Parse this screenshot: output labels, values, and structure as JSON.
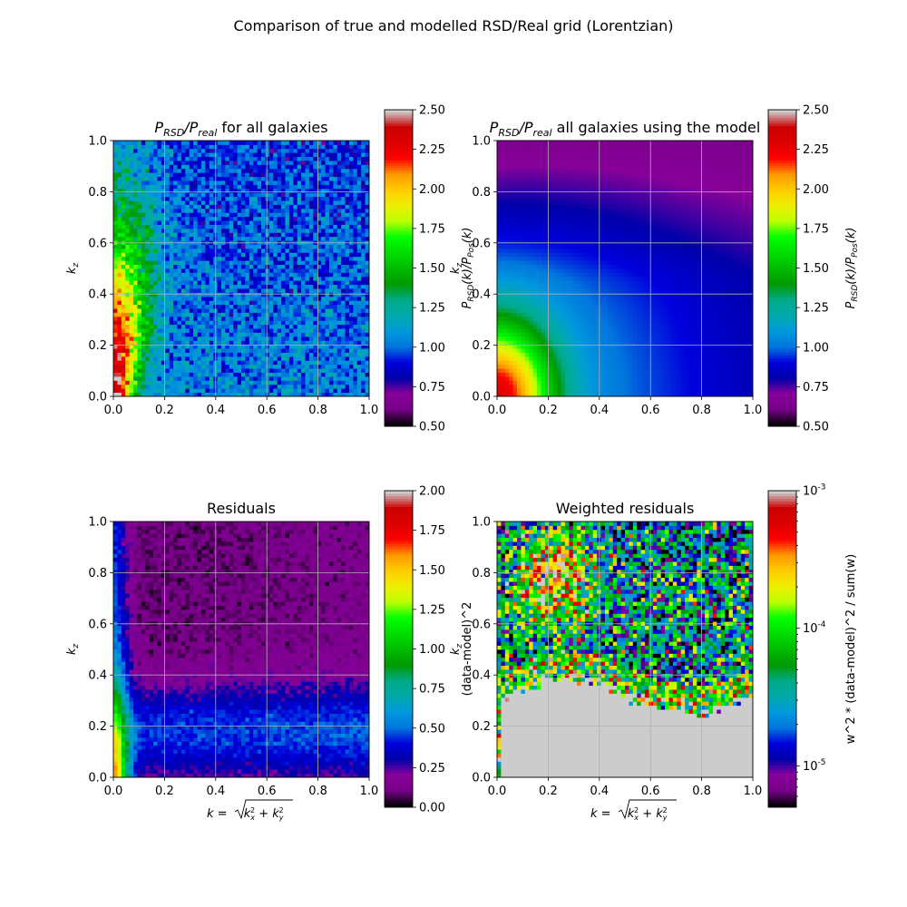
{
  "figure": {
    "suptitle": "Comparison of true and modelled RSD/Real grid (Lorentzian)"
  },
  "chart_data": [
    {
      "type": "heatmap",
      "id": "p1",
      "title": "P_RSD/P_real for all galaxies",
      "title_parts": [
        "P",
        "RSD",
        "/P",
        "real",
        " for all galaxies"
      ],
      "xlabel": "",
      "ylabel": "k_z",
      "xlim": [
        0,
        1
      ],
      "ylim": [
        0,
        1
      ],
      "xticks": [
        "0.0",
        "0.2",
        "0.4",
        "0.6",
        "0.8",
        "1.0"
      ],
      "yticks": [
        "0.0",
        "0.2",
        "0.4",
        "0.6",
        "0.8",
        "1.0"
      ],
      "grid": true,
      "colorscale": "nipy_spectral",
      "color_range": [
        0.5,
        2.5
      ],
      "colorbar_ticks": [
        "0.50",
        "0.75",
        "1.00",
        "1.25",
        "1.50",
        "1.75",
        "2.00",
        "2.25",
        "2.50"
      ],
      "colorbar_label": "P_RSD(k)/P_Pos(k)",
      "description_values": {
        "low_k_kz_peak": 2.3,
        "high_k_level": 1.0
      }
    },
    {
      "type": "heatmap",
      "id": "p2",
      "title": "P_RSD/P_real all galaxies using the model",
      "title_parts": [
        "P",
        "RSD",
        "/P",
        "real",
        " all galaxies using the model"
      ],
      "xlabel": "",
      "ylabel": "k_z",
      "xlim": [
        0,
        1
      ],
      "ylim": [
        0,
        1
      ],
      "xticks": [
        "0.0",
        "0.2",
        "0.4",
        "0.6",
        "0.8",
        "1.0"
      ],
      "yticks": [
        "0.0",
        "0.2",
        "0.4",
        "0.6",
        "0.8",
        "1.0"
      ],
      "grid": true,
      "colorscale": "nipy_spectral",
      "color_range": [
        0.5,
        2.5
      ],
      "colorbar_ticks": [
        "0.50",
        "0.75",
        "1.00",
        "1.25",
        "1.50",
        "1.75",
        "2.00",
        "2.25",
        "2.50"
      ],
      "colorbar_label": "P_RSD(k)/P_Pos(k)"
    },
    {
      "type": "heatmap",
      "id": "p3",
      "title": "Residuals",
      "xlabel": "k = sqrt(k_x^2 + k_y^2)",
      "ylabel": "k_z",
      "xlim": [
        0,
        1
      ],
      "ylim": [
        0,
        1
      ],
      "xticks": [
        "0.0",
        "0.2",
        "0.4",
        "0.6",
        "0.8",
        "1.0"
      ],
      "yticks": [
        "0.0",
        "0.2",
        "0.4",
        "0.6",
        "0.8",
        "1.0"
      ],
      "grid": true,
      "colorscale": "nipy_spectral",
      "color_range": [
        0.0,
        2.0
      ],
      "colorbar_ticks": [
        "0.00",
        "0.25",
        "0.50",
        "0.75",
        "1.00",
        "1.25",
        "1.50",
        "1.75",
        "2.00"
      ],
      "colorbar_label": "(data-model)^2"
    },
    {
      "type": "heatmap",
      "id": "p4",
      "title": "Weighted residuals",
      "xlabel": "k = sqrt(k_x^2 + k_y^2)",
      "ylabel": "k_z",
      "xlim": [
        0,
        1
      ],
      "ylim": [
        0,
        1
      ],
      "xticks": [
        "0.0",
        "0.2",
        "0.4",
        "0.6",
        "0.8",
        "1.0"
      ],
      "yticks": [
        "0.0",
        "0.2",
        "0.4",
        "0.6",
        "0.8",
        "1.0"
      ],
      "grid": true,
      "colorscale": "nipy_spectral",
      "color_scale_type": "log",
      "color_range": [
        5e-06,
        0.001
      ],
      "colorbar_ticks": [
        "10^-5",
        "10^-4",
        "10^-3"
      ],
      "colorbar_label": "w^2 * (data-model)^2 / sum(w)",
      "masked_color": "#cccccc"
    }
  ]
}
